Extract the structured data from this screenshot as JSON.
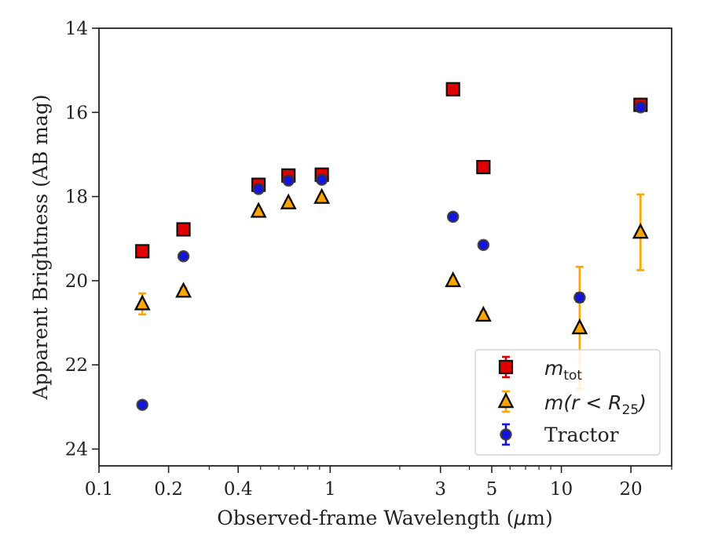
{
  "chart_data": {
    "type": "scatter",
    "xlabel_prefix": "Observed-frame Wavelength (",
    "xlabel_mu": "μ",
    "xlabel_suffix": "m)",
    "ylabel": "Apparent Brightness (AB mag)",
    "xscale": "log",
    "xlim": [
      0.1,
      30
    ],
    "ylim": [
      24.4,
      14
    ],
    "y_inverted": true,
    "x_ticks": [
      {
        "value": 0.1,
        "label": "0.1"
      },
      {
        "value": 0.2,
        "label": "0.2"
      },
      {
        "value": 0.4,
        "label": "0.4"
      },
      {
        "value": 1,
        "label": "1"
      },
      {
        "value": 3,
        "label": "3"
      },
      {
        "value": 5,
        "label": "5"
      },
      {
        "value": 10,
        "label": "10"
      },
      {
        "value": 20,
        "label": "20"
      }
    ],
    "x_minor_ticks": [
      0.3,
      0.5,
      0.6,
      0.7,
      0.8,
      0.9,
      2,
      4,
      6,
      7,
      8,
      9,
      30
    ],
    "y_ticks": [
      {
        "value": 14,
        "label": "14"
      },
      {
        "value": 16,
        "label": "16"
      },
      {
        "value": 18,
        "label": "18"
      },
      {
        "value": 20,
        "label": "20"
      },
      {
        "value": 22,
        "label": "22"
      },
      {
        "value": 24,
        "label": "24"
      }
    ],
    "legend_position": "lower-right",
    "series": [
      {
        "key": "mtot",
        "legend_base": "m",
        "legend_sub": "tot",
        "marker": "square",
        "color": "#e00000",
        "ecolor": "#e00000",
        "points": [
          {
            "x": 0.154,
            "y": 19.3,
            "err": 0.07
          },
          {
            "x": 0.232,
            "y": 18.78,
            "err": 0.06
          },
          {
            "x": 0.49,
            "y": 17.72,
            "err": 0.04
          },
          {
            "x": 0.66,
            "y": 17.5,
            "err": 0.04
          },
          {
            "x": 0.92,
            "y": 17.48,
            "err": 0.04
          },
          {
            "x": 3.4,
            "y": 15.45,
            "err": 0.03
          },
          {
            "x": 4.6,
            "y": 17.3,
            "err": 0.04
          },
          {
            "x": 22.0,
            "y": 15.82,
            "err": 0.08
          }
        ]
      },
      {
        "key": "m_r25",
        "legend_base": "m",
        "legend_rest": "(r < R",
        "legend_sub": "25",
        "legend_close": ")",
        "marker": "triangle",
        "color": "#ffa500",
        "ecolor": "#ffa500",
        "points": [
          {
            "x": 0.154,
            "y": 20.55,
            "err": 0.25
          },
          {
            "x": 0.232,
            "y": 20.25,
            "err": 0.08
          },
          {
            "x": 0.49,
            "y": 18.35,
            "err": 0.05
          },
          {
            "x": 0.66,
            "y": 18.15,
            "err": 0.05
          },
          {
            "x": 0.92,
            "y": 18.02,
            "err": 0.05
          },
          {
            "x": 3.4,
            "y": 20.0,
            "err": 0.06
          },
          {
            "x": 4.6,
            "y": 20.82,
            "err": 0.08
          },
          {
            "x": 12.0,
            "y": 21.12,
            "err": 1.45
          },
          {
            "x": 22.0,
            "y": 18.85,
            "err": 0.9
          }
        ]
      },
      {
        "key": "tractor",
        "legend_base": "Tractor",
        "marker": "circle",
        "color": "#1414e0",
        "ecolor": "#1414e0",
        "points": [
          {
            "x": 0.154,
            "y": 22.95,
            "err": 0.05
          },
          {
            "x": 0.232,
            "y": 19.42,
            "err": 0.05
          },
          {
            "x": 0.49,
            "y": 17.82,
            "err": 0.04
          },
          {
            "x": 0.66,
            "y": 17.62,
            "err": 0.04
          },
          {
            "x": 0.92,
            "y": 17.6,
            "err": 0.04
          },
          {
            "x": 3.4,
            "y": 18.48,
            "err": 0.05
          },
          {
            "x": 4.6,
            "y": 19.15,
            "err": 0.05
          },
          {
            "x": 12.0,
            "y": 20.4,
            "err": 0.1
          },
          {
            "x": 22.0,
            "y": 15.88,
            "err": 0.06
          }
        ]
      }
    ]
  }
}
